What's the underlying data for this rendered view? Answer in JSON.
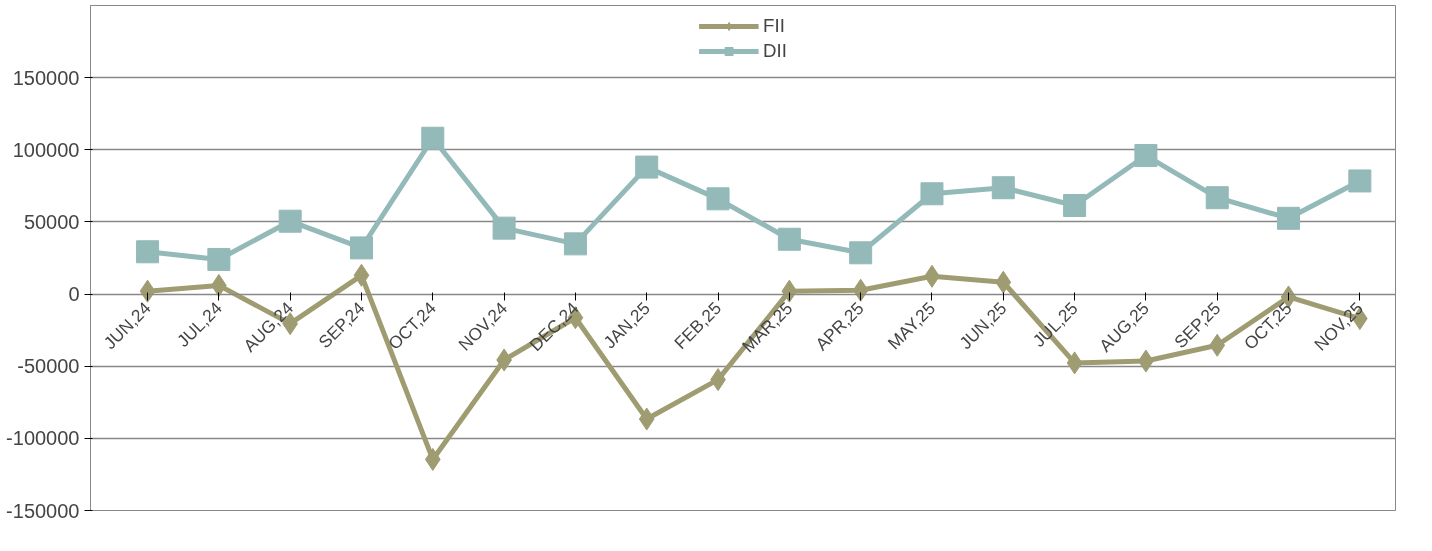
{
  "chart_data": {
    "type": "line",
    "categories": [
      "JUN,24",
      "JUL,24",
      "AUG,24",
      "SEP,24",
      "OCT,24",
      "NOV,24",
      "DEC,24",
      "JAN,25",
      "FEB,25",
      "MAR,25",
      "APR,25",
      "MAY,25",
      "JUN,25",
      "JUL,25",
      "AUG,25",
      "SEP,25",
      "OCT,25",
      "NOV,25"
    ],
    "series": [
      {
        "name": "FII",
        "color": "#a09c72",
        "marker": "diamond",
        "values": [
          2000,
          6000,
          -20500,
          13000,
          -114600,
          -45700,
          -16400,
          -86600,
          -59300,
          2000,
          2700,
          12300,
          8200,
          -47700,
          -46400,
          -35500,
          -2000,
          -17000
        ]
      },
      {
        "name": "DII",
        "color": "#93b9b8",
        "marker": "square",
        "values": [
          29300,
          24000,
          50500,
          32000,
          108000,
          45700,
          34800,
          88000,
          66000,
          38000,
          28600,
          69500,
          73700,
          61400,
          96000,
          66800,
          52500,
          78400
        ]
      }
    ],
    "ylim": [
      -150000,
      200000
    ],
    "yticks": [
      -150000,
      -100000,
      -50000,
      0,
      50000,
      100000,
      150000
    ],
    "grid": "y",
    "legend": "top"
  }
}
